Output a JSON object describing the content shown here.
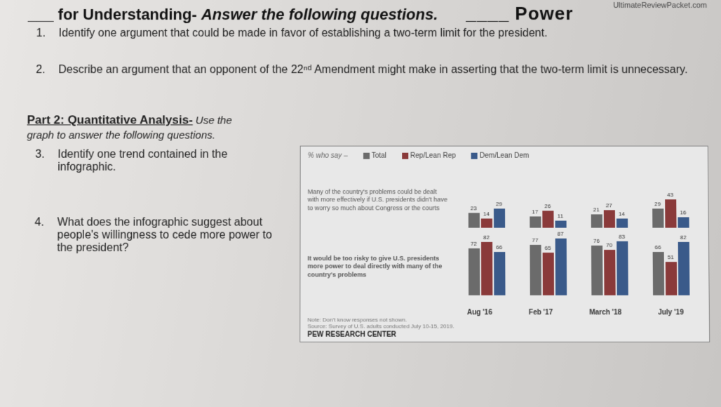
{
  "site": "UltimateReviewPacket.com",
  "header_fragment_left": "___ for Understanding-",
  "header_fragment_right": "____ Power",
  "instruction": "Answer the following questions.",
  "questions": {
    "q1": {
      "num": "1.",
      "text": "Identify one argument that could be made in favor of establishing a two-term limit for the president."
    },
    "q2": {
      "num": "2.",
      "text": "Describe an argument that an opponent of the 22ⁿᵈ Amendment might make in asserting that the two-term limit is unnecessary."
    }
  },
  "part2": {
    "title": "Part 2: Quantitative Analysis-",
    "sub": "Use the graph to answer the following questions.",
    "q3": {
      "num": "3.",
      "text": "Identify one trend contained in the infographic."
    },
    "q4": {
      "num": "4.",
      "text": "What does the infographic suggest about people's willingness to cede more power to the president?"
    }
  },
  "chart": {
    "who_say": "% who say –",
    "legend": {
      "total": {
        "label": "Total",
        "color": "#6b6b6b"
      },
      "rep": {
        "label": "Rep/Lean Rep",
        "color": "#8a3a3a"
      },
      "dem": {
        "label": "Dem/Lean Dem",
        "color": "#3a5a8a"
      }
    },
    "row_labels": {
      "top": "Many of the country's problems could be dealt with more effectively if U.S. presidents didn't have to worry so much about Congress or the courts",
      "bottom": "It would be too risky to give U.S. presidents more power to deal directly with many of the country's problems"
    },
    "periods": [
      "Aug '16",
      "Feb '17",
      "March '18",
      "July '19"
    ],
    "data_top": {
      "Aug '16": {
        "total": 23,
        "rep": 14,
        "dem": 29
      },
      "Feb '17": {
        "total": 17,
        "rep": 26,
        "dem": 11
      },
      "March '18": {
        "total": 21,
        "rep": 27,
        "dem": 14
      },
      "July '19": {
        "total": 29,
        "rep": 43,
        "dem": 16
      }
    },
    "data_bottom": {
      "Aug '16": {
        "total": 72,
        "rep": 82,
        "dem": 66
      },
      "Feb '17": {
        "total": 77,
        "rep": 65,
        "dem": 87
      },
      "March '18": {
        "total": 76,
        "rep": 70,
        "dem": 83
      },
      "July '19": {
        "total": 66,
        "rep": 51,
        "dem": 82
      }
    },
    "max": 100,
    "note": "Note: Don't know responses not shown.",
    "source_line": "Source: Survey of U.S. adults conducted July 10-15, 2019.",
    "source": "PEW RESEARCH CENTER"
  }
}
